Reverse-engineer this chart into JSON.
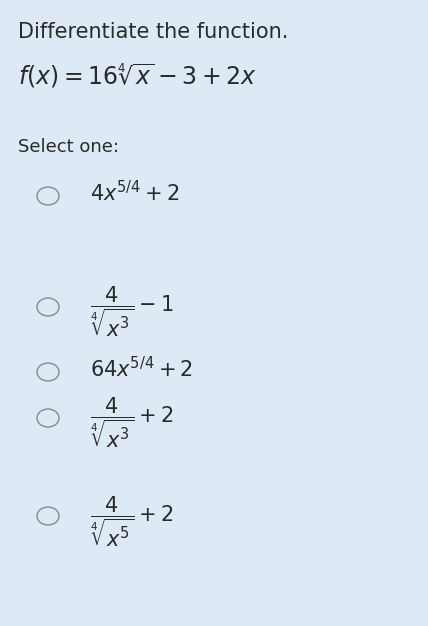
{
  "background_color": "#ddeaf5",
  "title_text": "Differentiate the function.",
  "function_text": "$f(x) = 16\\sqrt[4]{x} - 3 + 2x$",
  "select_one_text": "Select one:",
  "options": [
    "$4x^{5/4} + 2$",
    "$\\dfrac{4}{\\sqrt[4]{x^3}} - 1$",
    "$64x^{5/4} + 2$",
    "$\\dfrac{4}{\\sqrt[4]{x^3}} + 2$",
    "$\\dfrac{4}{\\sqrt[4]{x^5}} + 2$"
  ],
  "text_color": "#2a2a2a",
  "title_fontsize": 15,
  "function_fontsize": 17,
  "select_fontsize": 13,
  "option_fontsize": 15,
  "circle_color": "#888888",
  "circle_linewidth": 1.0
}
